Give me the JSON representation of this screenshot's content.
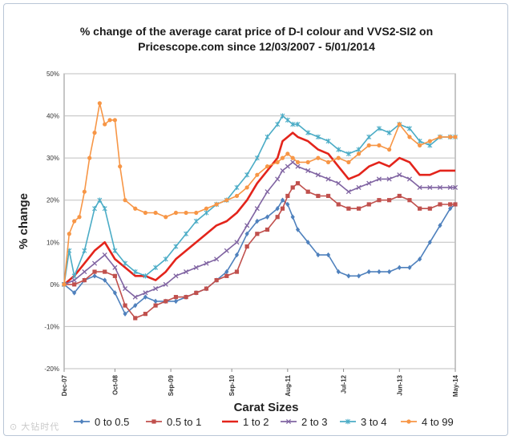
{
  "chart_data": {
    "type": "line",
    "title": "% change of the average carat price of  D-I colour and VVS2-SI2  on",
    "subtitle": "Pricescope.com since 12/03/2007 - 5/01/2014",
    "xlabel": "Carat Sizes",
    "ylabel": "% change",
    "ylim": [
      -20,
      50
    ],
    "y_ticks": [
      "-20%",
      "-10%",
      "0%",
      "10%",
      "20%",
      "30%",
      "40%",
      "50%"
    ],
    "x_ticks": [
      "Dec-07",
      "Oct-08",
      "Sep-09",
      "Sep-10",
      "Aug-11",
      "Jul-12",
      "Jun-13",
      "May-14"
    ],
    "x_tick_months": [
      0,
      10,
      21,
      33,
      44,
      55,
      66,
      77
    ],
    "x_range_months": [
      0,
      77
    ],
    "grid": "horizontal",
    "legend_position": "bottom",
    "series": [
      {
        "name": "0 to 0.5",
        "color": "#4f81bd",
        "marker": "diamond",
        "x": [
          0,
          2,
          4,
          6,
          8,
          10,
          12,
          14,
          16,
          18,
          20,
          22,
          24,
          26,
          28,
          30,
          32,
          34,
          36,
          38,
          40,
          42,
          43,
          44,
          45,
          46,
          48,
          50,
          52,
          54,
          56,
          58,
          60,
          62,
          64,
          66,
          68,
          70,
          72,
          74,
          76,
          77
        ],
        "values": [
          0,
          -2,
          1,
          2,
          1,
          -2,
          -7,
          -5,
          -3,
          -4,
          -4,
          -4,
          -3,
          -2,
          -1,
          1,
          3,
          7,
          12,
          15,
          16,
          18,
          20,
          19,
          16,
          13,
          10,
          7,
          7,
          3,
          2,
          2,
          3,
          3,
          3,
          4,
          4,
          6,
          10,
          14,
          18,
          19
        ]
      },
      {
        "name": "0.5  to 1",
        "color": "#c0504d",
        "marker": "square",
        "x": [
          0,
          2,
          4,
          6,
          8,
          10,
          12,
          14,
          16,
          18,
          20,
          22,
          24,
          26,
          28,
          30,
          32,
          34,
          36,
          38,
          40,
          42,
          43,
          44,
          45,
          46,
          48,
          50,
          52,
          54,
          56,
          58,
          60,
          62,
          64,
          66,
          68,
          70,
          72,
          74,
          76,
          77
        ],
        "values": [
          0,
          0,
          1,
          3,
          3,
          2,
          -5,
          -8,
          -7,
          -5,
          -4,
          -3,
          -3,
          -2,
          -1,
          1,
          2,
          3,
          9,
          12,
          13,
          16,
          18,
          21,
          23,
          24,
          22,
          21,
          21,
          19,
          18,
          18,
          19,
          20,
          20,
          21,
          20,
          18,
          18,
          19,
          19,
          19
        ]
      },
      {
        "name": "1 to 2",
        "color": "#e3241b",
        "marker": "none",
        "x": [
          0,
          2,
          4,
          6,
          8,
          10,
          12,
          14,
          16,
          18,
          20,
          22,
          24,
          26,
          28,
          30,
          32,
          34,
          36,
          38,
          40,
          42,
          43,
          44,
          45,
          46,
          48,
          50,
          52,
          54,
          56,
          58,
          60,
          62,
          64,
          66,
          68,
          70,
          72,
          74,
          76,
          77
        ],
        "values": [
          0,
          2,
          5,
          8,
          10,
          6,
          4,
          2,
          2,
          1,
          3,
          6,
          8,
          10,
          12,
          14,
          15,
          17,
          20,
          24,
          27,
          30,
          34,
          35,
          36,
          35,
          34,
          32,
          31,
          28,
          25,
          26,
          28,
          29,
          28,
          30,
          29,
          26,
          26,
          27,
          27,
          27
        ]
      },
      {
        "name": "2 to 3",
        "color": "#8064a2",
        "marker": "x",
        "x": [
          0,
          2,
          4,
          6,
          8,
          10,
          12,
          14,
          16,
          18,
          20,
          22,
          24,
          26,
          28,
          30,
          32,
          34,
          36,
          38,
          40,
          42,
          43,
          44,
          45,
          46,
          48,
          50,
          52,
          54,
          56,
          58,
          60,
          62,
          64,
          66,
          68,
          70,
          72,
          74,
          76,
          77
        ],
        "values": [
          0,
          1,
          3,
          5,
          7,
          4,
          -1,
          -3,
          -2,
          -1,
          0,
          2,
          3,
          4,
          5,
          6,
          8,
          10,
          14,
          18,
          22,
          25,
          27,
          28,
          29,
          28,
          27,
          26,
          25,
          24,
          22,
          23,
          24,
          25,
          25,
          26,
          25,
          23,
          23,
          23,
          23,
          23
        ]
      },
      {
        "name": "3 to 4",
        "color": "#4bacc6",
        "marker": "star",
        "x": [
          0,
          1,
          2,
          4,
          6,
          7,
          8,
          10,
          12,
          14,
          16,
          18,
          20,
          22,
          24,
          26,
          28,
          30,
          32,
          34,
          36,
          38,
          40,
          42,
          43,
          44,
          45,
          46,
          48,
          50,
          52,
          54,
          56,
          58,
          60,
          62,
          64,
          66,
          68,
          70,
          72,
          74,
          76,
          77
        ],
        "values": [
          0,
          8,
          2,
          8,
          18,
          20,
          18,
          8,
          5,
          3,
          2,
          4,
          6,
          9,
          12,
          15,
          17,
          19,
          20,
          23,
          26,
          30,
          35,
          38,
          40,
          39,
          38,
          38,
          36,
          35,
          34,
          32,
          31,
          32,
          35,
          37,
          36,
          38,
          37,
          34,
          33,
          35,
          35,
          35
        ]
      },
      {
        "name": "4 to 99",
        "color": "#f79646",
        "marker": "circle",
        "x": [
          0,
          1,
          2,
          3,
          4,
          5,
          6,
          7,
          8,
          9,
          10,
          11,
          12,
          14,
          16,
          18,
          20,
          22,
          24,
          26,
          28,
          30,
          32,
          34,
          36,
          38,
          40,
          42,
          43,
          44,
          45,
          46,
          48,
          50,
          52,
          54,
          56,
          58,
          60,
          62,
          64,
          66,
          68,
          70,
          72,
          74,
          76,
          77
        ],
        "values": [
          0,
          12,
          15,
          16,
          22,
          30,
          36,
          43,
          38,
          39,
          39,
          28,
          20,
          18,
          17,
          17,
          16,
          17,
          17,
          17,
          18,
          19,
          20,
          21,
          23,
          26,
          28,
          29,
          30,
          31,
          30,
          29,
          29,
          30,
          29,
          30,
          29,
          31,
          33,
          33,
          32,
          38,
          35,
          33,
          34,
          35,
          35,
          35
        ]
      }
    ]
  },
  "watermark": "⊙ 大钻时代"
}
